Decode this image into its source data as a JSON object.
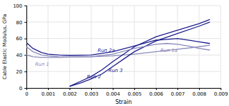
{
  "chart_data": {
    "type": "line",
    "title": "",
    "x_label": "Strain",
    "y_label": "Cable Elastic Modulus, GPa",
    "xlim": [
      0,
      0.009
    ],
    "ylim": [
      0,
      100
    ],
    "xticks": [
      0,
      0.001,
      0.002,
      0.003,
      0.004,
      0.005,
      0.006,
      0.007,
      0.008,
      0.009
    ],
    "yticks": [
      0,
      20,
      40,
      60,
      80,
      100
    ],
    "grid": true,
    "series": [
      {
        "name": "Run 1",
        "color": "#8888bb",
        "x": [
          0,
          0.0003,
          0.0007,
          0.001,
          0.0015,
          0.002,
          0.003,
          0.004,
          0.005,
          0.006,
          0.007,
          0.008,
          0.0085
        ],
        "values": [
          40,
          38,
          37,
          37,
          37,
          37.5,
          38,
          39,
          41,
          44,
          47,
          50,
          52
        ]
      },
      {
        "name": "Run 2a",
        "color": "#1a1a8c",
        "x": [
          0,
          0.0003,
          0.0007,
          0.001,
          0.0015,
          0.002,
          0.003,
          0.004,
          0.005,
          0.006,
          0.0065,
          0.007,
          0.0075,
          0.008,
          0.0085
        ],
        "values": [
          55,
          48,
          43,
          41,
          40,
          39.5,
          40,
          44,
          51,
          58,
          59,
          60,
          58,
          56,
          54
        ]
      },
      {
        "name": "Run 2",
        "color": "#1a1a8c",
        "x": [
          0.002,
          0.0025,
          0.003,
          0.0035,
          0.004,
          0.0045,
          0.005,
          0.006,
          0.007,
          0.008,
          0.0085
        ],
        "values": [
          2,
          6,
          11,
          17,
          26,
          35,
          44,
          57,
          66,
          75,
          80
        ]
      },
      {
        "name": "Run 3",
        "color": "#1a1a8c",
        "x": [
          0.002,
          0.0025,
          0.003,
          0.0035,
          0.004,
          0.0045,
          0.005,
          0.006,
          0.007,
          0.008,
          0.0085
        ],
        "values": [
          2,
          8,
          14,
          22,
          32,
          41,
          50,
          62,
          70,
          78,
          83
        ]
      },
      {
        "name": "Run 1a",
        "color": "#8888bb",
        "x": [
          0,
          0.0003,
          0.0007,
          0.001,
          0.0015,
          0.002,
          0.003,
          0.004,
          0.005,
          0.006,
          0.0065,
          0.007,
          0.0075,
          0.008,
          0.0085
        ],
        "values": [
          50,
          44,
          40,
          39,
          38,
          37.5,
          38,
          41,
          48,
          53,
          54,
          53,
          51,
          48,
          46
        ]
      }
    ],
    "annotations": [
      {
        "text": "Run 1",
        "x": 0.0004,
        "y": 27,
        "color": "#8888bb"
      },
      {
        "text": "Run 2a",
        "x": 0.0033,
        "y": 44,
        "color": "#1a1a8c"
      },
      {
        "text": "Run 2",
        "x": 0.0028,
        "y": 12,
        "color": "#1a1a8c"
      },
      {
        "text": "Run 3",
        "x": 0.0038,
        "y": 19,
        "color": "#1a1a8c"
      },
      {
        "text": "Run 1a",
        "x": 0.0062,
        "y": 44,
        "color": "#8888bb"
      }
    ]
  }
}
